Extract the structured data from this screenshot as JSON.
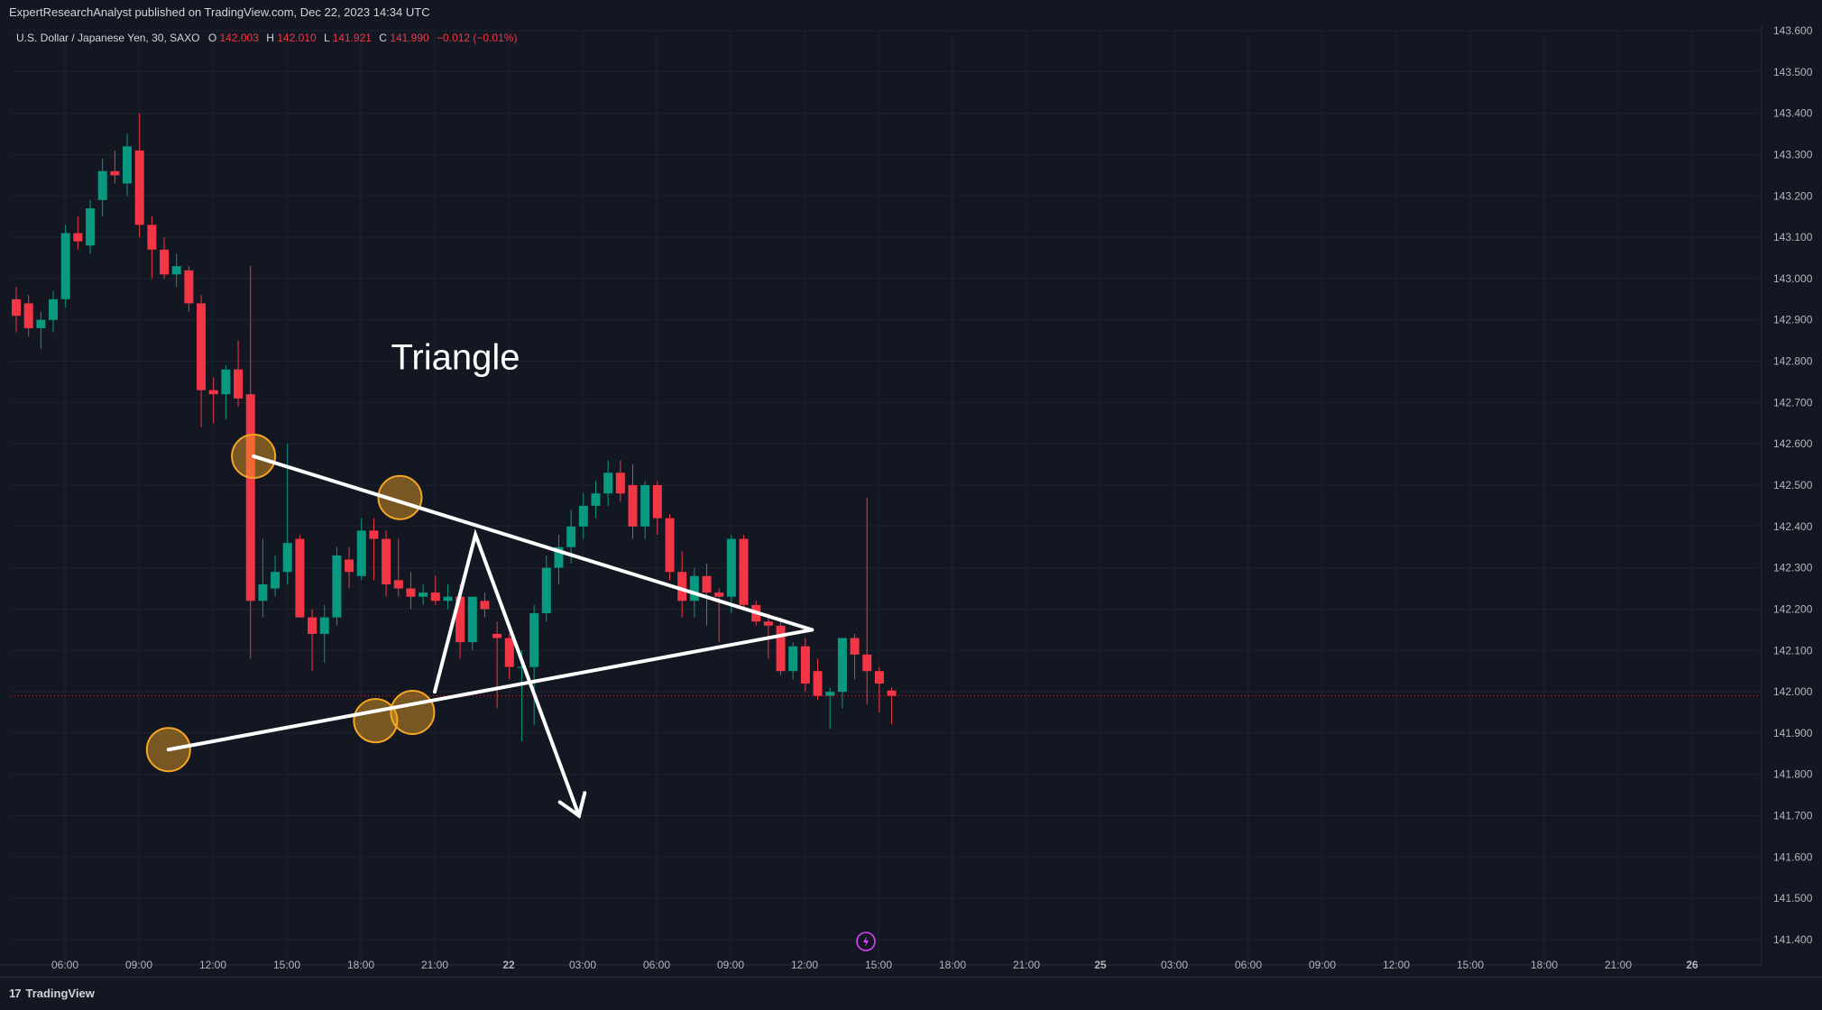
{
  "header": {
    "published": "ExpertResearchAnalyst published on TradingView.com, Dec 22, 2023 14:34 UTC"
  },
  "footer": {
    "brand": "TradingView",
    "brand_mark": "17"
  },
  "legend": {
    "symbol": "U.S. Dollar / Japanese Yen, 30, SAXO",
    "o_label": "O",
    "o_value": "142.003",
    "h_label": "H",
    "h_value": "142.010",
    "l_label": "L",
    "l_value": "141.921",
    "c_label": "C",
    "c_value": "141.990",
    "change": "−0.012 (−0.01%)"
  },
  "colors": {
    "background": "#131722",
    "up": "#089981",
    "down": "#f23645",
    "drawing": "#ffffff",
    "highlight": "#f5a623",
    "grid": "#1e222d",
    "text": "#b2b5be"
  },
  "chart_data": {
    "type": "candlestick",
    "annotation": "Triangle",
    "y_ticks": [
      "143.600",
      "143.500",
      "143.400",
      "143.300",
      "143.200",
      "143.100",
      "143.000",
      "142.900",
      "142.800",
      "142.700",
      "142.600",
      "142.500",
      "142.400",
      "142.300",
      "142.200",
      "142.100",
      "142.000",
      "141.900",
      "141.800",
      "141.700",
      "141.600",
      "141.500",
      "141.400"
    ],
    "ylim": [
      141.38,
      143.62
    ],
    "x_ticks": [
      "06:00",
      "09:00",
      "12:00",
      "15:00",
      "18:00",
      "21:00",
      "22",
      "03:00",
      "06:00",
      "09:00",
      "12:00",
      "15:00",
      "18:00",
      "21:00",
      "25",
      "03:00",
      "06:00",
      "09:00",
      "12:00",
      "15:00",
      "18:00",
      "21:00",
      "26"
    ],
    "current_price": 141.99,
    "candles": [
      {
        "o": 142.95,
        "h": 142.98,
        "l": 142.87,
        "c": 142.91
      },
      {
        "o": 142.94,
        "h": 142.96,
        "l": 142.86,
        "c": 142.88
      },
      {
        "o": 142.88,
        "h": 142.92,
        "l": 142.83,
        "c": 142.9
      },
      {
        "o": 142.9,
        "h": 142.97,
        "l": 142.87,
        "c": 142.95
      },
      {
        "o": 142.95,
        "h": 143.13,
        "l": 142.93,
        "c": 143.11
      },
      {
        "o": 143.11,
        "h": 143.15,
        "l": 143.07,
        "c": 143.09
      },
      {
        "o": 143.08,
        "h": 143.19,
        "l": 143.06,
        "c": 143.17
      },
      {
        "o": 143.19,
        "h": 143.29,
        "l": 143.15,
        "c": 143.26
      },
      {
        "o": 143.26,
        "h": 143.31,
        "l": 143.23,
        "c": 143.25
      },
      {
        "o": 143.23,
        "h": 143.35,
        "l": 143.2,
        "c": 143.32
      },
      {
        "o": 143.31,
        "h": 143.4,
        "l": 143.1,
        "c": 143.13
      },
      {
        "o": 143.13,
        "h": 143.15,
        "l": 143.0,
        "c": 143.07
      },
      {
        "o": 143.07,
        "h": 143.1,
        "l": 143.0,
        "c": 143.01
      },
      {
        "o": 143.01,
        "h": 143.06,
        "l": 142.98,
        "c": 143.03
      },
      {
        "o": 143.02,
        "h": 143.03,
        "l": 142.92,
        "c": 142.94
      },
      {
        "o": 142.94,
        "h": 142.96,
        "l": 142.64,
        "c": 142.73
      },
      {
        "o": 142.73,
        "h": 142.76,
        "l": 142.65,
        "c": 142.72
      },
      {
        "o": 142.72,
        "h": 142.79,
        "l": 142.66,
        "c": 142.78
      },
      {
        "o": 142.78,
        "h": 142.85,
        "l": 142.69,
        "c": 142.71
      },
      {
        "o": 142.72,
        "h": 143.03,
        "l": 142.08,
        "c": 142.22
      },
      {
        "o": 142.22,
        "h": 142.37,
        "l": 142.18,
        "c": 142.26
      },
      {
        "o": 142.25,
        "h": 142.33,
        "l": 142.23,
        "c": 142.29
      },
      {
        "o": 142.29,
        "h": 142.6,
        "l": 142.26,
        "c": 142.36
      },
      {
        "o": 142.37,
        "h": 142.38,
        "l": 142.18,
        "c": 142.18
      },
      {
        "o": 142.18,
        "h": 142.2,
        "l": 142.05,
        "c": 142.14
      },
      {
        "o": 142.14,
        "h": 142.21,
        "l": 142.07,
        "c": 142.18
      },
      {
        "o": 142.18,
        "h": 142.35,
        "l": 142.16,
        "c": 142.33
      },
      {
        "o": 142.32,
        "h": 142.35,
        "l": 142.25,
        "c": 142.29
      },
      {
        "o": 142.28,
        "h": 142.42,
        "l": 142.27,
        "c": 142.39
      },
      {
        "o": 142.39,
        "h": 142.42,
        "l": 142.27,
        "c": 142.37
      },
      {
        "o": 142.37,
        "h": 142.39,
        "l": 142.23,
        "c": 142.26
      },
      {
        "o": 142.27,
        "h": 142.37,
        "l": 142.23,
        "c": 142.25
      },
      {
        "o": 142.25,
        "h": 142.29,
        "l": 142.2,
        "c": 142.23
      },
      {
        "o": 142.23,
        "h": 142.26,
        "l": 142.21,
        "c": 142.24
      },
      {
        "o": 142.24,
        "h": 142.28,
        "l": 142.21,
        "c": 142.22
      },
      {
        "o": 142.22,
        "h": 142.26,
        "l": 142.2,
        "c": 142.23
      },
      {
        "o": 142.23,
        "h": 142.26,
        "l": 142.08,
        "c": 142.12
      },
      {
        "o": 142.12,
        "h": 142.23,
        "l": 142.1,
        "c": 142.23
      },
      {
        "o": 142.22,
        "h": 142.24,
        "l": 142.18,
        "c": 142.2
      },
      {
        "o": 142.14,
        "h": 142.17,
        "l": 141.96,
        "c": 142.13
      },
      {
        "o": 142.13,
        "h": 142.14,
        "l": 142.03,
        "c": 142.06
      },
      {
        "o": 142.06,
        "h": 142.1,
        "l": 141.88,
        "c": 142.06
      },
      {
        "o": 142.06,
        "h": 142.21,
        "l": 141.92,
        "c": 142.19
      },
      {
        "o": 142.19,
        "h": 142.33,
        "l": 142.17,
        "c": 142.3
      },
      {
        "o": 142.3,
        "h": 142.38,
        "l": 142.26,
        "c": 142.35
      },
      {
        "o": 142.35,
        "h": 142.44,
        "l": 142.31,
        "c": 142.4
      },
      {
        "o": 142.4,
        "h": 142.48,
        "l": 142.37,
        "c": 142.45
      },
      {
        "o": 142.45,
        "h": 142.51,
        "l": 142.42,
        "c": 142.48
      },
      {
        "o": 142.48,
        "h": 142.56,
        "l": 142.45,
        "c": 142.53
      },
      {
        "o": 142.53,
        "h": 142.56,
        "l": 142.46,
        "c": 142.48
      },
      {
        "o": 142.5,
        "h": 142.55,
        "l": 142.37,
        "c": 142.4
      },
      {
        "o": 142.4,
        "h": 142.51,
        "l": 142.37,
        "c": 142.5
      },
      {
        "o": 142.5,
        "h": 142.51,
        "l": 142.38,
        "c": 142.42
      },
      {
        "o": 142.42,
        "h": 142.43,
        "l": 142.27,
        "c": 142.29
      },
      {
        "o": 142.29,
        "h": 142.34,
        "l": 142.18,
        "c": 142.22
      },
      {
        "o": 142.22,
        "h": 142.3,
        "l": 142.18,
        "c": 142.28
      },
      {
        "o": 142.28,
        "h": 142.31,
        "l": 142.16,
        "c": 142.24
      },
      {
        "o": 142.24,
        "h": 142.25,
        "l": 142.12,
        "c": 142.23
      },
      {
        "o": 142.23,
        "h": 142.38,
        "l": 142.19,
        "c": 142.37
      },
      {
        "o": 142.37,
        "h": 142.38,
        "l": 142.2,
        "c": 142.21
      },
      {
        "o": 142.21,
        "h": 142.22,
        "l": 142.16,
        "c": 142.17
      },
      {
        "o": 142.17,
        "h": 142.19,
        "l": 142.08,
        "c": 142.16
      },
      {
        "o": 142.16,
        "h": 142.18,
        "l": 142.04,
        "c": 142.05
      },
      {
        "o": 142.05,
        "h": 142.12,
        "l": 142.03,
        "c": 142.11
      },
      {
        "o": 142.11,
        "h": 142.13,
        "l": 142.0,
        "c": 142.02
      },
      {
        "o": 142.05,
        "h": 142.08,
        "l": 141.98,
        "c": 141.99
      },
      {
        "o": 141.99,
        "h": 142.01,
        "l": 141.91,
        "c": 142.0
      },
      {
        "o": 142.0,
        "h": 142.13,
        "l": 141.96,
        "c": 142.13
      },
      {
        "o": 142.13,
        "h": 142.14,
        "l": 142.03,
        "c": 142.09
      },
      {
        "o": 142.09,
        "h": 142.47,
        "l": 141.97,
        "c": 142.05
      },
      {
        "o": 142.05,
        "h": 142.06,
        "l": 141.95,
        "c": 142.02
      },
      {
        "o": 142.003,
        "h": 142.01,
        "l": 141.921,
        "c": 141.99
      }
    ],
    "drawings": {
      "triangle_upper": [
        {
          "t": 2.55,
          "p": 142.57
        },
        {
          "t": 10.1,
          "p": 142.15
        }
      ],
      "triangle_lower": [
        {
          "t": 1.4,
          "p": 141.86
        },
        {
          "t": 10.1,
          "p": 142.15
        }
      ],
      "projection_path": [
        {
          "t": 5.0,
          "p": 142.0
        },
        {
          "t": 5.55,
          "p": 142.38
        },
        {
          "t": 6.95,
          "p": 141.7
        }
      ],
      "highlight_circles": [
        {
          "t": 2.55,
          "p": 142.57
        },
        {
          "t": 1.4,
          "p": 141.86
        },
        {
          "t": 4.53,
          "p": 142.47
        },
        {
          "t": 4.2,
          "p": 141.93
        },
        {
          "t": 4.7,
          "p": 141.95
        }
      ],
      "text_label_at": {
        "t": 5.28,
        "p": 142.78
      }
    }
  }
}
